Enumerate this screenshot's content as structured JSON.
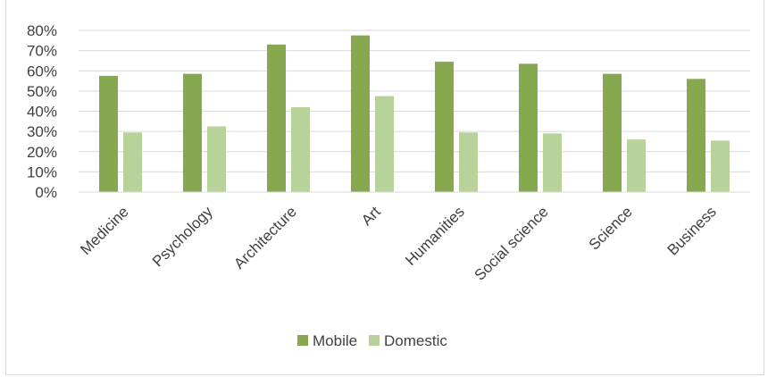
{
  "chart_data": {
    "type": "bar",
    "title": "",
    "xlabel": "",
    "ylabel": "",
    "categories": [
      "Medicine",
      "Psychology",
      "Architecture",
      "Art",
      "Humanities",
      "Social science",
      "Science",
      "Business"
    ],
    "series": [
      {
        "name": "Mobile",
        "values": [
          57.5,
          58.5,
          73,
          77.5,
          64.5,
          63.5,
          58.5,
          56
        ],
        "color": "#86a94f"
      },
      {
        "name": "Domestic",
        "values": [
          29.5,
          32.5,
          42,
          47.5,
          29.5,
          29,
          26,
          25.5
        ],
        "color": "#b8d39a"
      }
    ],
    "ylim": [
      0,
      80
    ],
    "yticks": [
      "0%",
      "10%",
      "20%",
      "30%",
      "40%",
      "50%",
      "60%",
      "70%",
      "80%"
    ],
    "grid": true,
    "legend_position": "bottom"
  }
}
